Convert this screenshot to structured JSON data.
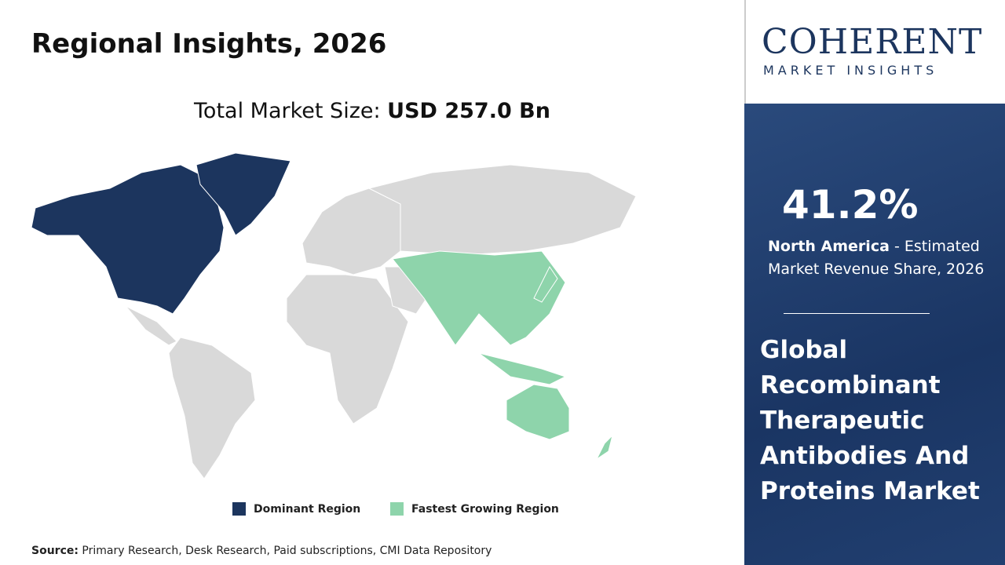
{
  "header": {
    "title": "Regional Insights, 2026",
    "market_size_label": "Total Market Size:",
    "market_size_value": "USD 257.0 Bn"
  },
  "logo": {
    "name": "COHERENT",
    "tagline": "MARKET INSIGHTS"
  },
  "highlight": {
    "share": "41.2%",
    "region": "North America",
    "description": "- Estimated Market Revenue Share, 2026"
  },
  "market_title": "Global Recombinant Therapeutic Antibodies And Proteins Market",
  "legend": [
    {
      "label": "Dominant Region",
      "color": "#1c355e"
    },
    {
      "label": "Fastest Growing Region",
      "color": "#8ed4ab"
    }
  ],
  "source": {
    "label": "Source:",
    "text": "Primary Research, Desk Research, Paid subscriptions, CMI Data Repository"
  }
}
